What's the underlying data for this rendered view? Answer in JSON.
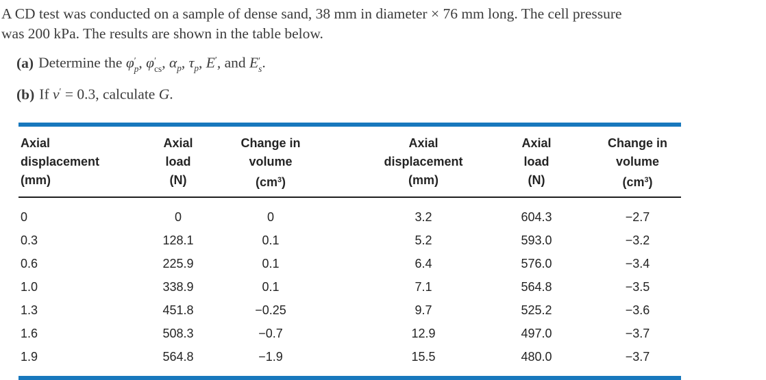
{
  "colors": {
    "accent_blue": "#1878bd",
    "rule_black": "#1e1e1e",
    "body_text": "#3b3b3b",
    "table_text": "#242424"
  },
  "problem": {
    "statement_line1": "A CD test was conducted on a sample of dense sand, 38 mm in diameter × 76 mm long. The cell pressure",
    "statement_line2": "was 200 kPa. The results are shown in the table below.",
    "part_a": {
      "label": "(a)",
      "lead": "Determine the ",
      "phi": "φ",
      "prime": "′",
      "sub_p": "p",
      "sub_cs": "cs",
      "sep1": ", ",
      "alpha": "α",
      "sep2": ", ",
      "tau": "τ",
      "sep3": ", ",
      "E": "E",
      "sep4": ", and ",
      "sub_s": "s",
      "period": "."
    },
    "part_b": {
      "label": "(b)",
      "pre": "If ",
      "nu": "ν",
      "prime": "′",
      "mid": " = 0.3, calculate ",
      "G": "G",
      "period": "."
    }
  },
  "table": {
    "headers": [
      {
        "l1": "Axial",
        "l2": "displacement",
        "l3": "(mm)"
      },
      {
        "l1": "Axial",
        "l2": "load",
        "l3": "(N)"
      },
      {
        "l1": "Change in",
        "l2": "volume",
        "l3_pre": "(cm",
        "l3_sup": "3",
        "l3_post": ")"
      },
      {
        "l1": "Axial",
        "l2": "displacement",
        "l3": "(mm)"
      },
      {
        "l1": "Axial",
        "l2": "load",
        "l3": "(N)"
      },
      {
        "l1": "Change in",
        "l2": "volume",
        "l3_pre": "(cm",
        "l3_sup": "3",
        "l3_post": ")"
      }
    ],
    "rows": [
      [
        "0",
        "0",
        "0",
        "3.2",
        "604.3",
        "−2.7"
      ],
      [
        "0.3",
        "128.1",
        "0.1",
        "5.2",
        "593.0",
        "−3.2"
      ],
      [
        "0.6",
        "225.9",
        "0.1",
        "6.4",
        "576.0",
        "−3.4"
      ],
      [
        "1.0",
        "338.9",
        "0.1",
        "7.1",
        "564.8",
        "−3.5"
      ],
      [
        "1.3",
        "451.8",
        "−0.25",
        "9.7",
        "525.2",
        "−3.6"
      ],
      [
        "1.6",
        "508.3",
        "−0.7",
        "12.9",
        "497.0",
        "−3.7"
      ],
      [
        "1.9",
        "564.8",
        "−1.9",
        "15.5",
        "480.0",
        "−3.7"
      ]
    ]
  }
}
